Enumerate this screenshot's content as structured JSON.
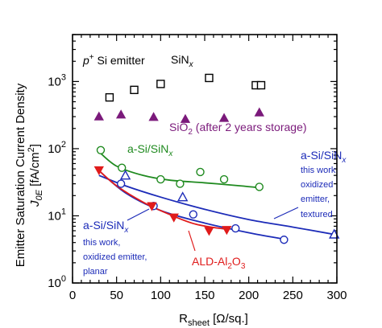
{
  "chart_data": {
    "type": "scatter",
    "title": "",
    "xlabel": {
      "main": "R",
      "sub": "sheet",
      "rest": " [Ω/sq.]"
    },
    "ylabel": {
      "line1": "Emitter Saturation Current Density",
      "line2_main": "J",
      "line2_sub": "0E",
      "line2_rest": " [fA/cm",
      "line2_sup": "2",
      "line2_end": "]"
    },
    "x_ticks": [
      "0",
      "50",
      "100",
      "150",
      "200",
      "250",
      "300"
    ],
    "y_ticks": [
      {
        "base": "10",
        "exp": "0"
      },
      {
        "base": "10",
        "exp": "1"
      },
      {
        "base": "10",
        "exp": "2"
      },
      {
        "base": "10",
        "exp": "3"
      }
    ],
    "xlim": [
      0,
      300
    ],
    "ylim": [
      1,
      5000
    ],
    "y_scale": "log",
    "grid": false,
    "series": [
      {
        "name": "SiN_x",
        "marker": "square-open",
        "color": "#000000",
        "x": [
          42,
          70,
          100,
          155,
          208,
          214
        ],
        "y": [
          580,
          750,
          920,
          1130,
          880,
          880
        ]
      },
      {
        "name": "SiO_2 (after 2 years storage)",
        "marker": "triangle-up-filled",
        "color": "#7b1a7b",
        "x": [
          30,
          55,
          92,
          128,
          172,
          212
        ],
        "y": [
          300,
          320,
          295,
          275,
          285,
          345
        ]
      },
      {
        "name": "a-Si/SiN_x",
        "marker": "circle-open",
        "color": "#1f8a1f",
        "x": [
          32,
          56,
          100,
          122,
          145,
          172,
          212
        ],
        "y": [
          95,
          52,
          35,
          30,
          45,
          35,
          27
        ],
        "fit_x": [
          30,
          50,
          80,
          110,
          150,
          190,
          215
        ],
        "fit_y": [
          90,
          55,
          40,
          34,
          31,
          28,
          26
        ]
      },
      {
        "name": "a-Si/SiN_x this work, oxidized emitter, textured",
        "marker": "triangle-up-open",
        "color": "#1c2bb8",
        "x": [
          60,
          125,
          297
        ],
        "y": [
          40,
          19,
          5.3
        ],
        "fit_x": [
          30,
          60,
          100,
          150,
          200,
          250,
          300
        ],
        "fit_y": [
          40,
          28,
          19,
          12.5,
          8.8,
          6.8,
          5.2
        ]
      },
      {
        "name": "a-Si/SiN_x this work, oxidized emitter, planar",
        "marker": "circle-open",
        "color": "#1c2bb8",
        "x": [
          55,
          92,
          137,
          185,
          240
        ],
        "y": [
          30,
          14,
          10.5,
          6.5,
          4.4
        ],
        "fit_x": [
          30,
          60,
          100,
          150,
          200,
          240
        ],
        "fit_y": [
          47,
          22,
          12,
          7.8,
          5.6,
          4.5
        ]
      },
      {
        "name": "ALD-Al_2O_3",
        "marker": "triangle-down-filled",
        "color": "#e01b1b",
        "x": [
          30,
          90,
          115,
          155,
          175
        ],
        "y": [
          48,
          14,
          9.5,
          6,
          6.2
        ],
        "fit_x": [
          28,
          50,
          80,
          110,
          140,
          175
        ],
        "fit_y": [
          50,
          28,
          16,
          10.5,
          7.5,
          6.3
        ]
      }
    ],
    "annotations": {
      "emitter": {
        "sup": "p",
        "sup_mark": "+",
        "rest": " Si emitter"
      },
      "sinx": {
        "main": "SiN",
        "sub": "x"
      },
      "sio2": {
        "main": "SiO",
        "sub": "2",
        "rest": " (after 2 years storage)"
      },
      "asi_green": {
        "main": "a-Si/SiN",
        "sub": "x"
      },
      "asi_textured": {
        "main": "a-Si/SiN",
        "sub": "x",
        "l2": "this work,",
        "l3": "oxidized",
        "l4": "emitter,",
        "l5": "textured"
      },
      "asi_planar": {
        "main": "a-Si/SiN",
        "sub": "x",
        "l2": "this work,",
        "l3": "oxidized emitter,",
        "l4": "planar"
      },
      "ald": {
        "main": "ALD-Al",
        "sub": "2",
        "mid": "O",
        "sub2": "3"
      }
    },
    "colors": {
      "sinx": "#000000",
      "sio2": "#7b1a7b",
      "green": "#1f8a1f",
      "blue": "#1c2bb8",
      "red": "#e01b1b"
    }
  }
}
